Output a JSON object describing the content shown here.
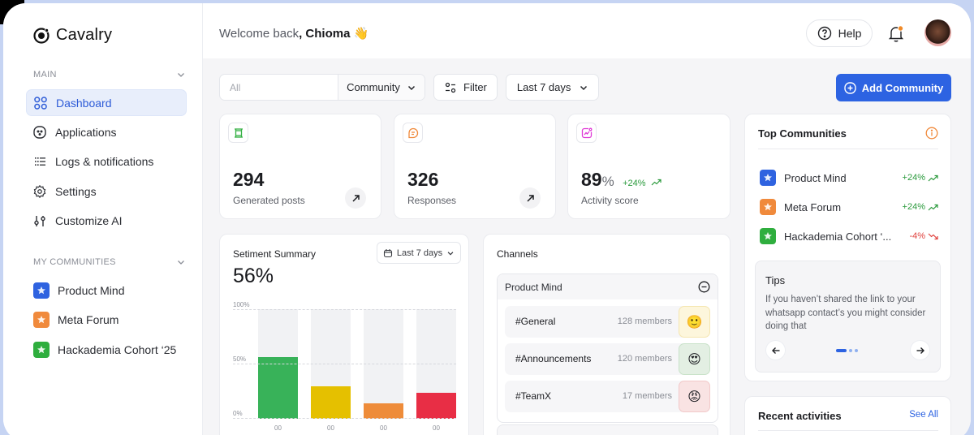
{
  "app": {
    "name": "Cavalry"
  },
  "sidebar": {
    "main_section": {
      "label": "MAIN"
    },
    "items": [
      {
        "label": "Dashboard",
        "icon": "grid-icon",
        "active": true
      },
      {
        "label": "Applications",
        "icon": "face-icon",
        "active": false
      },
      {
        "label": "Logs & notifications",
        "icon": "list-icon",
        "active": false
      },
      {
        "label": "Settings",
        "icon": "gear-icon",
        "active": false
      },
      {
        "label": "Customize AI",
        "icon": "sliders-icon",
        "active": false
      }
    ],
    "communities_section": {
      "label": "MY COMMUNITIES"
    },
    "communities": [
      {
        "label": "Product Mind",
        "color": "#2f63e0"
      },
      {
        "label": "Meta Forum",
        "color": "#f08a3c"
      },
      {
        "label": "Hackademia Cohort ‘25",
        "color": "#2fae3e"
      }
    ]
  },
  "header": {
    "welcome_prefix": "Welcome back",
    "user_name": ", Chioma",
    "wave_emoji": "👋",
    "help_label": "Help"
  },
  "toolbar": {
    "search_placeholder": "All",
    "community_select": "Community",
    "filter_label": "Filter",
    "range_select": "Last 7 days",
    "add_button": "Add Community"
  },
  "stats": [
    {
      "value": "294",
      "label": "Generated posts",
      "icon": "posts-icon",
      "icon_color": "#34b043"
    },
    {
      "value": "326",
      "label": "Responses",
      "icon": "chat-icon",
      "icon_color": "#f08a3c"
    },
    {
      "value": "89",
      "unit": "%",
      "label": "Activity score",
      "trend": "+24%",
      "icon": "activity-icon",
      "icon_color": "#e03ad6"
    }
  ],
  "sentiment": {
    "title": "Setiment Summary",
    "range": "Last 7 days",
    "value": "56%",
    "y_ticks": [
      "100%",
      "50%",
      "0%"
    ],
    "x_labels": [
      "00",
      "00",
      "00",
      "00"
    ]
  },
  "chart_data": {
    "type": "bar",
    "title": "Setiment Summary",
    "categories": [
      "00",
      "00",
      "00",
      "00"
    ],
    "values": [
      56,
      30,
      14,
      24
    ],
    "colors": [
      "#38b259",
      "#e5c000",
      "#ee8c3a",
      "#e82e45"
    ],
    "ylim": [
      0,
      100
    ],
    "y_ticks": [
      "0%",
      "50%",
      "100%"
    ],
    "grid": true
  },
  "channels": {
    "title": "Channels",
    "group": "Product Mind",
    "rows": [
      {
        "name": "#General",
        "members": "128 members",
        "emoji": "🙂",
        "bg": "#fdf6dc",
        "border": "#f5e6b0"
      },
      {
        "name": "#Announcements",
        "members": "120 members",
        "emoji": "😍",
        "bg": "#e3efe3",
        "border": "#c9e2c9"
      },
      {
        "name": "#TeamX",
        "members": "17 members",
        "emoji": "😡",
        "bg": "#f9e3e3",
        "border": "#f2c9c9"
      }
    ]
  },
  "top_communities": {
    "title": "Top Communities",
    "rows": [
      {
        "name": "Product Mind",
        "trend": "+24%",
        "direction": "up",
        "color": "#2f63e0"
      },
      {
        "name": "Meta Forum",
        "trend": "+24%",
        "direction": "up",
        "color": "#f08a3c"
      },
      {
        "name": "Hackademia Cohort ‘...",
        "trend": "-4%",
        "direction": "down",
        "color": "#2fae3e"
      }
    ]
  },
  "tips": {
    "title": "Tips",
    "text": "If you haven’t shared the link to your whatsapp contact’s you might consider doing that"
  },
  "recent": {
    "title": "Recent activities",
    "see_all": "See All"
  }
}
